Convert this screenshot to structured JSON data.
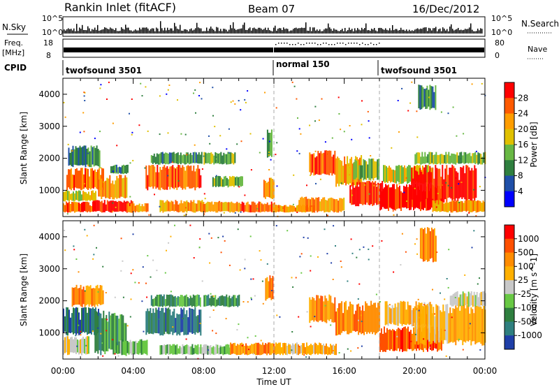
{
  "header": {
    "radar": "Rankin Inlet (fitACF)",
    "beam": "Beam 07",
    "date": "16/Dec/2012"
  },
  "summary": {
    "nsky_label": "N.Sky",
    "nsearch_label": "N.Search",
    "freq_label": "Freq.",
    "freq_unit": "[MHz]",
    "nave_label": "Nave",
    "cpid_label": "CPID",
    "nsky_ticks": [
      "10^5",
      "10^0"
    ],
    "nsearch_ticks": [
      "10^5",
      "10^0"
    ],
    "freq_ticks": [
      "18",
      "8"
    ],
    "nave_ticks": [
      "80",
      "0"
    ],
    "modes": [
      {
        "name": "twofsound 3501",
        "start_h": 0
      },
      {
        "name": "normal 150",
        "start_h": 12
      },
      {
        "name": "twofsound 3501",
        "start_h": 18
      }
    ]
  },
  "chart_data": [
    {
      "type": "heatmap",
      "name": "Power",
      "ylabel": "Slant Range [km]",
      "xlabel": "Time UT",
      "xlim": [
        0,
        24
      ],
      "ylim": [
        180,
        4500
      ],
      "yticks": [
        "1000",
        "2000",
        "3000",
        "4000"
      ],
      "xticks": [
        "00:00",
        "04:00",
        "08:00",
        "12:00",
        "16:00",
        "20:00",
        "00:00"
      ],
      "colorbar": {
        "label": "Power [dB]",
        "ticks": [
          "28",
          "24",
          "20",
          "16",
          "12",
          "8",
          "4"
        ],
        "colors": [
          "#0000ff",
          "#1f4fa8",
          "#2f7f3f",
          "#68b844",
          "#e0c000",
          "#ff9d00",
          "#ff5a00",
          "#ff0000"
        ]
      },
      "regions": [
        {
          "t0": 0.0,
          "t1": 1.9,
          "r0": 300,
          "r1": 650,
          "lvl": 6
        },
        {
          "t0": 0.0,
          "t1": 1.9,
          "r0": 650,
          "r1": 1000,
          "lvl": 4
        },
        {
          "t0": 0.2,
          "t1": 2.3,
          "r0": 1000,
          "r1": 1700,
          "lvl": 6
        },
        {
          "t0": 0.3,
          "t1": 2.1,
          "r0": 1700,
          "r1": 2400,
          "lvl": 2
        },
        {
          "t0": 1.7,
          "t1": 4.0,
          "r0": 300,
          "r1": 700,
          "lvl": 7
        },
        {
          "t0": 2.0,
          "t1": 3.6,
          "r0": 700,
          "r1": 1500,
          "lvl": 5
        },
        {
          "t0": 2.7,
          "t1": 3.7,
          "r0": 1500,
          "r1": 1800,
          "lvl": 2
        },
        {
          "t0": 3.6,
          "t1": 4.8,
          "r0": 300,
          "r1": 600,
          "lvl": 5
        },
        {
          "t0": 4.7,
          "t1": 7.8,
          "r0": 1000,
          "r1": 1800,
          "lvl": 6
        },
        {
          "t0": 5.0,
          "t1": 7.9,
          "r0": 1800,
          "r1": 2200,
          "lvl": 2
        },
        {
          "t0": 5.5,
          "t1": 8.0,
          "r0": 300,
          "r1": 700,
          "lvl": 5
        },
        {
          "t0": 7.8,
          "t1": 10.0,
          "r0": 300,
          "r1": 650,
          "lvl": 5
        },
        {
          "t0": 8.0,
          "t1": 9.8,
          "r0": 1800,
          "r1": 2200,
          "lvl": 3
        },
        {
          "t0": 8.5,
          "t1": 10.2,
          "r0": 1100,
          "r1": 1450,
          "lvl": 3
        },
        {
          "t0": 10.0,
          "t1": 12.0,
          "r0": 300,
          "r1": 650,
          "lvl": 6
        },
        {
          "t0": 11.4,
          "t1": 12.0,
          "r0": 700,
          "r1": 1400,
          "lvl": 5
        },
        {
          "t0": 11.6,
          "t1": 11.9,
          "r0": 2000,
          "r1": 2900,
          "lvl": 2
        },
        {
          "t0": 12.0,
          "t1": 14.3,
          "r0": 300,
          "r1": 550,
          "lvl": 5
        },
        {
          "t0": 13.4,
          "t1": 16.0,
          "r0": 300,
          "r1": 800,
          "lvl": 5
        },
        {
          "t0": 14.0,
          "t1": 15.5,
          "r0": 1450,
          "r1": 2250,
          "lvl": 6
        },
        {
          "t0": 15.5,
          "t1": 17.0,
          "r0": 1100,
          "r1": 2100,
          "lvl": 5
        },
        {
          "t0": 16.3,
          "t1": 18.2,
          "r0": 500,
          "r1": 1300,
          "lvl": 7
        },
        {
          "t0": 16.5,
          "t1": 18.0,
          "r0": 1300,
          "r1": 2000,
          "lvl": 3
        },
        {
          "t0": 18.0,
          "t1": 21.5,
          "r0": 350,
          "r1": 1200,
          "lvl": 7
        },
        {
          "t0": 18.2,
          "t1": 21.0,
          "r0": 1200,
          "r1": 1800,
          "lvl": 4
        },
        {
          "t0": 19.8,
          "t1": 23.5,
          "r0": 600,
          "r1": 1800,
          "lvl": 7
        },
        {
          "t0": 20.0,
          "t1": 24.0,
          "r0": 1800,
          "r1": 2200,
          "lvl": 3
        },
        {
          "t0": 21.0,
          "t1": 24.0,
          "r0": 300,
          "r1": 700,
          "lvl": 5
        },
        {
          "t0": 20.2,
          "t1": 21.2,
          "r0": 3500,
          "r1": 4300,
          "lvl": 2
        }
      ]
    },
    {
      "type": "heatmap",
      "name": "Velocity",
      "ylabel": "Slant Range [km]",
      "xlabel": "Time UT",
      "xlim": [
        0,
        24
      ],
      "ylim": [
        180,
        4500
      ],
      "yticks": [
        "1000",
        "2000",
        "3000",
        "4000"
      ],
      "xticks": [
        "00:00",
        "04:00",
        "08:00",
        "12:00",
        "16:00",
        "20:00",
        "00:00"
      ],
      "colorbar": {
        "label": "Velocity [m s^-1]",
        "ticks": [
          "1000",
          "500",
          "100",
          "25",
          "-25",
          "-100",
          "-500",
          "-1000"
        ],
        "colors": [
          "#1f3fa8",
          "#2f7f7f",
          "#2f7f3f",
          "#68c844",
          "#c8c8c8",
          "#ffb000",
          "#ff8c00",
          "#ff5000",
          "#ff0000"
        ]
      },
      "regions": [
        {
          "t0": 0.0,
          "t1": 1.5,
          "r0": 300,
          "r1": 900,
          "lvl": 4
        },
        {
          "t0": 0.0,
          "t1": 2.0,
          "r0": 900,
          "r1": 1800,
          "lvl": 1
        },
        {
          "t0": 0.5,
          "t1": 2.3,
          "r0": 1800,
          "r1": 2500,
          "lvl": 6
        },
        {
          "t0": 1.8,
          "t1": 3.6,
          "r0": 300,
          "r1": 1700,
          "lvl": 2
        },
        {
          "t0": 3.0,
          "t1": 4.8,
          "r0": 300,
          "r1": 800,
          "lvl": 3
        },
        {
          "t0": 4.7,
          "t1": 7.8,
          "r0": 900,
          "r1": 1800,
          "lvl": 1
        },
        {
          "t0": 5.0,
          "t1": 7.8,
          "r0": 1800,
          "r1": 2200,
          "lvl": 2
        },
        {
          "t0": 5.5,
          "t1": 9.5,
          "r0": 300,
          "r1": 650,
          "lvl": 3
        },
        {
          "t0": 8.0,
          "t1": 10.0,
          "r0": 1800,
          "r1": 2200,
          "lvl": 2
        },
        {
          "t0": 9.5,
          "t1": 12.0,
          "r0": 300,
          "r1": 700,
          "lvl": 6
        },
        {
          "t0": 11.5,
          "t1": 11.9,
          "r0": 2000,
          "r1": 2800,
          "lvl": 6
        },
        {
          "t0": 12.0,
          "t1": 15.5,
          "r0": 300,
          "r1": 700,
          "lvl": 5
        },
        {
          "t0": 14.0,
          "t1": 15.5,
          "r0": 1300,
          "r1": 2200,
          "lvl": 6
        },
        {
          "t0": 15.5,
          "t1": 18.0,
          "r0": 900,
          "r1": 2000,
          "lvl": 6
        },
        {
          "t0": 18.0,
          "t1": 21.5,
          "r0": 400,
          "r1": 1200,
          "lvl": 7
        },
        {
          "t0": 18.3,
          "t1": 21.0,
          "r0": 1200,
          "r1": 2000,
          "lvl": 5
        },
        {
          "t0": 20.0,
          "t1": 24.0,
          "r0": 600,
          "r1": 1900,
          "lvl": 5
        },
        {
          "t0": 22.0,
          "t1": 24.0,
          "r0": 1800,
          "r1": 2300,
          "lvl": 4
        },
        {
          "t0": 20.3,
          "t1": 21.2,
          "r0": 3200,
          "r1": 4300,
          "lvl": 6
        }
      ]
    }
  ]
}
